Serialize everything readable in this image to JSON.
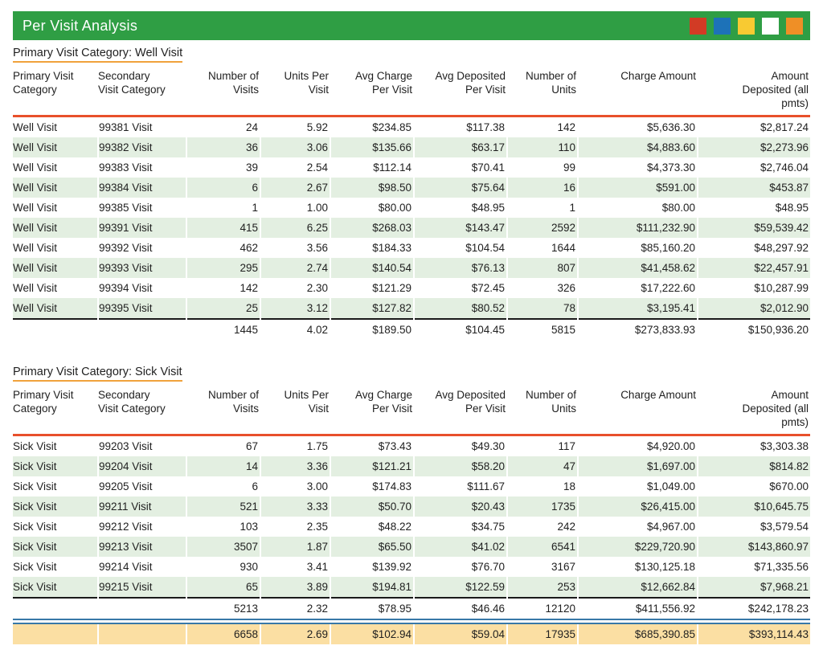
{
  "title_bar": {
    "title": "Per Visit Analysis",
    "squares": [
      {
        "name": "red-square",
        "color": "#d23b25"
      },
      {
        "name": "blue-square",
        "color": "#1d72b8"
      },
      {
        "name": "yellow-square",
        "color": "#f8ca32"
      },
      {
        "name": "white-square",
        "color": "#ffffff"
      },
      {
        "name": "orange-square",
        "color": "#ef8f26"
      }
    ]
  },
  "columns": [
    "Primary Visit\nCategory",
    "Secondary\nVisit Category",
    "Number of\nVisits",
    "Units Per\nVisit",
    "Avg Charge\nPer Visit",
    "Avg Deposited\nPer Visit",
    "Number of\nUnits",
    "Charge Amount",
    "Amount\nDeposited (all\npmts)"
  ],
  "sections": [
    {
      "title": "Primary Visit Category: Well Visit",
      "rows": [
        [
          "Well Visit",
          "99381 Visit",
          "24",
          "5.92",
          "$234.85",
          "$117.38",
          "142",
          "$5,636.30",
          "$2,817.24"
        ],
        [
          "Well Visit",
          "99382 Visit",
          "36",
          "3.06",
          "$135.66",
          "$63.17",
          "110",
          "$4,883.60",
          "$2,273.96"
        ],
        [
          "Well Visit",
          "99383 Visit",
          "39",
          "2.54",
          "$112.14",
          "$70.41",
          "99",
          "$4,373.30",
          "$2,746.04"
        ],
        [
          "Well Visit",
          "99384 Visit",
          "6",
          "2.67",
          "$98.50",
          "$75.64",
          "16",
          "$591.00",
          "$453.87"
        ],
        [
          "Well Visit",
          "99385 Visit",
          "1",
          "1.00",
          "$80.00",
          "$48.95",
          "1",
          "$80.00",
          "$48.95"
        ],
        [
          "Well Visit",
          "99391 Visit",
          "415",
          "6.25",
          "$268.03",
          "$143.47",
          "2592",
          "$111,232.90",
          "$59,539.42"
        ],
        [
          "Well Visit",
          "99392 Visit",
          "462",
          "3.56",
          "$184.33",
          "$104.54",
          "1644",
          "$85,160.20",
          "$48,297.92"
        ],
        [
          "Well Visit",
          "99393 Visit",
          "295",
          "2.74",
          "$140.54",
          "$76.13",
          "807",
          "$41,458.62",
          "$22,457.91"
        ],
        [
          "Well Visit",
          "99394 Visit",
          "142",
          "2.30",
          "$121.29",
          "$72.45",
          "326",
          "$17,222.60",
          "$10,287.99"
        ],
        [
          "Well Visit",
          "99395 Visit",
          "25",
          "3.12",
          "$127.82",
          "$80.52",
          "78",
          "$3,195.41",
          "$2,012.90"
        ]
      ],
      "total": [
        "",
        "",
        "1445",
        "4.02",
        "$189.50",
        "$104.45",
        "5815",
        "$273,833.93",
        "$150,936.20"
      ]
    },
    {
      "title": "Primary Visit Category: Sick Visit",
      "rows": [
        [
          "Sick Visit",
          "99203 Visit",
          "67",
          "1.75",
          "$73.43",
          "$49.30",
          "117",
          "$4,920.00",
          "$3,303.38"
        ],
        [
          "Sick Visit",
          "99204 Visit",
          "14",
          "3.36",
          "$121.21",
          "$58.20",
          "47",
          "$1,697.00",
          "$814.82"
        ],
        [
          "Sick Visit",
          "99205 Visit",
          "6",
          "3.00",
          "$174.83",
          "$111.67",
          "18",
          "$1,049.00",
          "$670.00"
        ],
        [
          "Sick Visit",
          "99211 Visit",
          "521",
          "3.33",
          "$50.70",
          "$20.43",
          "1735",
          "$26,415.00",
          "$10,645.75"
        ],
        [
          "Sick Visit",
          "99212 Visit",
          "103",
          "2.35",
          "$48.22",
          "$34.75",
          "242",
          "$4,967.00",
          "$3,579.54"
        ],
        [
          "Sick Visit",
          "99213 Visit",
          "3507",
          "1.87",
          "$65.50",
          "$41.02",
          "6541",
          "$229,720.90",
          "$143,860.97"
        ],
        [
          "Sick Visit",
          "99214 Visit",
          "930",
          "3.41",
          "$139.92",
          "$76.70",
          "3167",
          "$130,125.18",
          "$71,335.56"
        ],
        [
          "Sick Visit",
          "99215 Visit",
          "65",
          "3.89",
          "$194.81",
          "$122.59",
          "253",
          "$12,662.84",
          "$7,968.21"
        ]
      ],
      "total": [
        "",
        "",
        "5213",
        "2.32",
        "$78.95",
        "$46.46",
        "12120",
        "$411,556.92",
        "$242,178.23"
      ]
    }
  ],
  "grand_total": [
    "",
    "",
    "6658",
    "2.69",
    "$102.94",
    "$59.04",
    "17935",
    "$685,390.85",
    "$393,114.43"
  ],
  "colors": {
    "header_green": "#2f9e44",
    "stripe_green": "#e3efe1",
    "grand_total_orange": "#fbdfa3",
    "header_rule_red": "#e8502b",
    "section_underline_orange": "#f0a23c",
    "double_rule_blue": "#3878a8",
    "subtotal_rule_black": "#1a1a1a"
  }
}
